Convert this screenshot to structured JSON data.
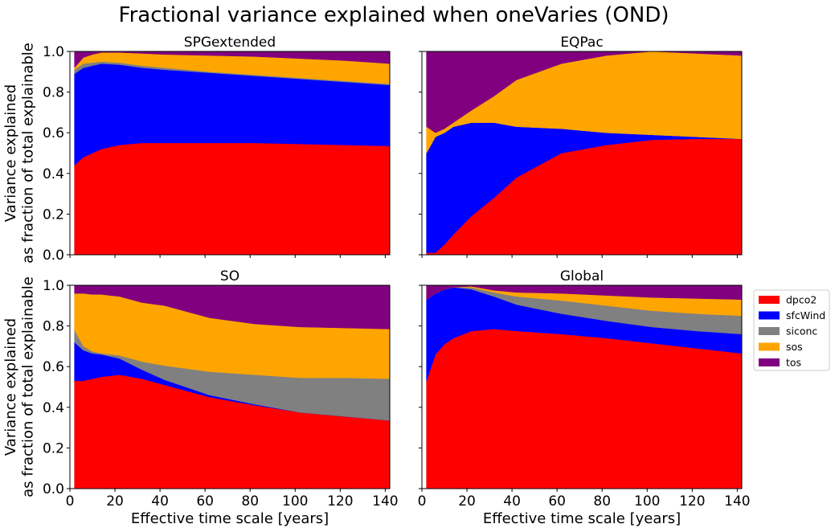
{
  "figure": {
    "title": "Fractional variance explained when oneVaries (OND)"
  },
  "colors": {
    "dpco2": "#ff0000",
    "sfcWind": "#0000ff",
    "siconc": "#808080",
    "sos": "#ffa500",
    "tos": "#800080"
  },
  "legend": {
    "placement": "right of Global panel",
    "entries": [
      "dpco2",
      "sfcWind",
      "siconc",
      "sos",
      "tos"
    ]
  },
  "chart_data": [
    {
      "type": "area",
      "stacked": true,
      "title": "SPGextended",
      "xlabel": "",
      "ylabel": "Variance explained\nas fraction of total explainable",
      "xlim": [
        0,
        142
      ],
      "ylim": [
        0,
        1
      ],
      "xticks": [],
      "yticks": [
        "0.0",
        "0.2",
        "0.4",
        "0.6",
        "0.8",
        "1.0"
      ],
      "x": [
        2,
        6,
        10,
        14,
        22,
        32,
        42,
        62,
        82,
        102,
        122,
        142
      ],
      "series": [
        {
          "name": "dpco2",
          "values": [
            0.44,
            0.48,
            0.5,
            0.52,
            0.54,
            0.55,
            0.55,
            0.55,
            0.55,
            0.545,
            0.54,
            0.535
          ]
        },
        {
          "name": "sfcWind",
          "values": [
            0.45,
            0.44,
            0.43,
            0.42,
            0.395,
            0.37,
            0.36,
            0.345,
            0.33,
            0.32,
            0.31,
            0.3
          ]
        },
        {
          "name": "siconc",
          "values": [
            0.02,
            0.02,
            0.015,
            0.01,
            0.01,
            0.01,
            0.01,
            0.005,
            0.005,
            0.005,
            0.005,
            0.005
          ]
        },
        {
          "name": "sos",
          "values": [
            0.01,
            0.03,
            0.04,
            0.045,
            0.05,
            0.06,
            0.065,
            0.08,
            0.09,
            0.095,
            0.1,
            0.1
          ]
        },
        {
          "name": "tos",
          "values": [
            0.08,
            0.03,
            0.015,
            0.005,
            0.005,
            0.01,
            0.015,
            0.02,
            0.025,
            0.035,
            0.045,
            0.06
          ]
        }
      ]
    },
    {
      "type": "area",
      "stacked": true,
      "title": "EQPac",
      "xlabel": "",
      "ylabel": "",
      "xlim": [
        0,
        142
      ],
      "ylim": [
        0,
        1
      ],
      "xticks": [],
      "yticks": [],
      "x": [
        2,
        6,
        10,
        14,
        22,
        32,
        42,
        62,
        82,
        102,
        122,
        142
      ],
      "series": [
        {
          "name": "dpco2",
          "values": [
            0.01,
            0.01,
            0.05,
            0.1,
            0.19,
            0.28,
            0.38,
            0.5,
            0.54,
            0.565,
            0.57,
            0.57
          ]
        },
        {
          "name": "sfcWind",
          "values": [
            0.49,
            0.57,
            0.55,
            0.53,
            0.46,
            0.37,
            0.25,
            0.12,
            0.06,
            0.025,
            0.01,
            0.0
          ]
        },
        {
          "name": "siconc",
          "values": [
            0,
            0,
            0,
            0,
            0,
            0,
            0,
            0,
            0,
            0,
            0,
            0
          ]
        },
        {
          "name": "sos",
          "values": [
            0.13,
            0.02,
            0.02,
            0.02,
            0.06,
            0.13,
            0.23,
            0.32,
            0.38,
            0.41,
            0.41,
            0.41
          ]
        },
        {
          "name": "tos",
          "values": [
            0.37,
            0.4,
            0.38,
            0.35,
            0.29,
            0.22,
            0.14,
            0.06,
            0.02,
            0.0,
            0.01,
            0.02
          ]
        }
      ]
    },
    {
      "type": "area",
      "stacked": true,
      "title": "SO",
      "xlabel": "Effective time scale [years]",
      "ylabel": "Variance explained\nas fraction of total explainable",
      "xlim": [
        0,
        142
      ],
      "ylim": [
        0,
        1
      ],
      "xticks": [
        "0",
        "20",
        "40",
        "60",
        "80",
        "100",
        "120",
        "140"
      ],
      "yticks": [
        "0.0",
        "0.2",
        "0.4",
        "0.6",
        "0.8",
        "1.0"
      ],
      "x": [
        2,
        6,
        10,
        14,
        22,
        32,
        42,
        62,
        82,
        102,
        122,
        142
      ],
      "series": [
        {
          "name": "dpco2",
          "values": [
            0.53,
            0.53,
            0.54,
            0.55,
            0.56,
            0.54,
            0.51,
            0.45,
            0.41,
            0.375,
            0.355,
            0.335
          ]
        },
        {
          "name": "sfcWind",
          "values": [
            0.19,
            0.15,
            0.125,
            0.11,
            0.08,
            0.045,
            0.025,
            0.01,
            0.005,
            0.0,
            0.0,
            0.0
          ]
        },
        {
          "name": "siconc",
          "values": [
            0.06,
            0.02,
            0.01,
            0.005,
            0.015,
            0.04,
            0.07,
            0.115,
            0.145,
            0.17,
            0.19,
            0.205
          ]
        },
        {
          "name": "sos",
          "values": [
            0.18,
            0.26,
            0.28,
            0.29,
            0.29,
            0.29,
            0.295,
            0.265,
            0.25,
            0.25,
            0.245,
            0.245
          ]
        },
        {
          "name": "tos",
          "values": [
            0.04,
            0.04,
            0.045,
            0.045,
            0.055,
            0.085,
            0.1,
            0.16,
            0.19,
            0.205,
            0.21,
            0.215
          ]
        }
      ]
    },
    {
      "type": "area",
      "stacked": true,
      "title": "Global",
      "xlabel": "Effective time scale [years]",
      "ylabel": "",
      "xlim": [
        0,
        142
      ],
      "ylim": [
        0,
        1
      ],
      "xticks": [
        "0",
        "20",
        "40",
        "60",
        "80",
        "100",
        "120",
        "140"
      ],
      "yticks": [],
      "x": [
        2,
        6,
        10,
        14,
        22,
        32,
        42,
        62,
        82,
        102,
        122,
        142
      ],
      "series": [
        {
          "name": "dpco2",
          "values": [
            0.53,
            0.66,
            0.71,
            0.74,
            0.775,
            0.785,
            0.775,
            0.76,
            0.74,
            0.715,
            0.69,
            0.665
          ]
        },
        {
          "name": "sfcWind",
          "values": [
            0.4,
            0.3,
            0.27,
            0.25,
            0.205,
            0.16,
            0.13,
            0.1,
            0.085,
            0.08,
            0.085,
            0.095
          ]
        },
        {
          "name": "siconc",
          "values": [
            0.0,
            0.0,
            0.0,
            0.0,
            0.01,
            0.02,
            0.04,
            0.065,
            0.075,
            0.08,
            0.085,
            0.09
          ]
        },
        {
          "name": "sos",
          "values": [
            0.0,
            0.0,
            0.0,
            0.0,
            0.005,
            0.01,
            0.02,
            0.035,
            0.05,
            0.065,
            0.075,
            0.08
          ]
        },
        {
          "name": "tos",
          "values": [
            0.07,
            0.04,
            0.02,
            0.01,
            0.005,
            0.025,
            0.035,
            0.04,
            0.05,
            0.06,
            0.065,
            0.07
          ]
        }
      ]
    }
  ]
}
